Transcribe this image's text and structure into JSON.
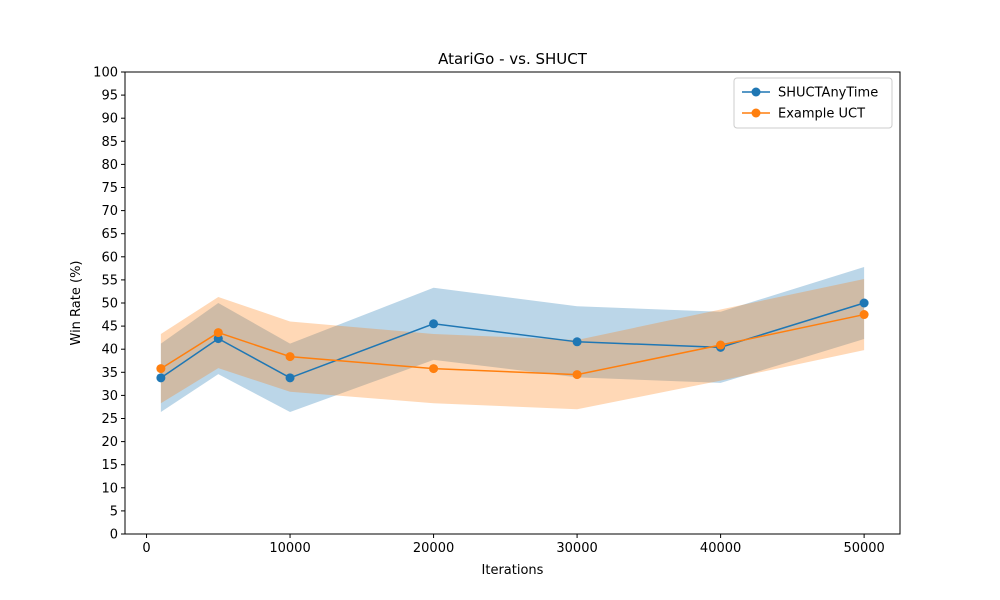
{
  "chart_data": {
    "type": "line",
    "title": "AtariGo - vs. SHUCT",
    "xlabel": "Iterations",
    "ylabel": "Win Rate (%)",
    "xlim": [
      -1500,
      52500
    ],
    "ylim": [
      0,
      100
    ],
    "xticks": [
      0,
      10000,
      20000,
      30000,
      40000,
      50000
    ],
    "yticks": [
      0,
      5,
      10,
      15,
      20,
      25,
      30,
      35,
      40,
      45,
      50,
      55,
      60,
      65,
      70,
      75,
      80,
      85,
      90,
      95,
      100
    ],
    "grid": false,
    "legend_position": "top-right",
    "x": [
      1000,
      5000,
      10000,
      20000,
      30000,
      40000,
      50000
    ],
    "series": [
      {
        "name": "SHUCTAnyTime",
        "color": "#1f77b4",
        "band_color": "#1f77b4",
        "values": [
          33.8,
          42.3,
          33.8,
          45.5,
          41.6,
          40.4,
          50.0
        ],
        "lower": [
          26.4,
          34.6,
          26.4,
          37.7,
          33.9,
          32.7,
          42.2
        ],
        "upper": [
          41.2,
          50.0,
          41.2,
          53.3,
          49.3,
          48.1,
          57.8
        ]
      },
      {
        "name": "Example UCT",
        "color": "#ff7f0e",
        "band_color": "#ff7f0e",
        "values": [
          35.8,
          43.6,
          38.4,
          35.8,
          34.5,
          40.9,
          47.5
        ],
        "lower": [
          28.3,
          35.9,
          30.8,
          28.3,
          27.0,
          33.2,
          39.8
        ],
        "upper": [
          43.3,
          51.3,
          46.0,
          43.3,
          42.0,
          48.6,
          55.2
        ]
      }
    ]
  }
}
